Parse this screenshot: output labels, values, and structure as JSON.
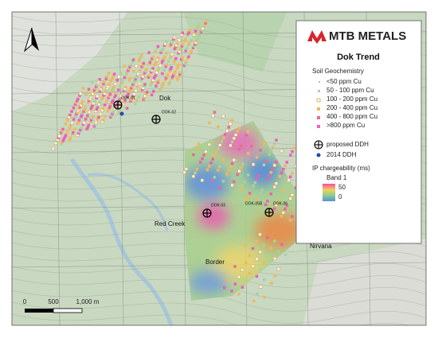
{
  "logo": "MTB METALS",
  "legend": {
    "title": "Dok Trend",
    "soil_title": "Soil Geochemistry",
    "soil_items": [
      "<50 ppm Cu",
      "50 - 100 ppm Cu",
      "100 - 200 ppm Cu",
      "200 - 400 ppm Cu",
      "400 - 800 ppm Cu",
      ">800 ppm Cu"
    ],
    "ddh_items": [
      "proposed DDH",
      "2014 DDH"
    ],
    "ip_title": "IP chargeability (ms)",
    "band": "Band 1",
    "ramp_labels": [
      "50",
      "0"
    ]
  },
  "places": [
    "Dok",
    "Red Creek",
    "Border",
    "Nirvana"
  ],
  "drillholes": [
    "DOK-01",
    "DOK-02",
    "DOK-03",
    "DOK-05B",
    "DOK-06"
  ],
  "scale": [
    "0",
    "500",
    "1,000 m"
  ]
}
